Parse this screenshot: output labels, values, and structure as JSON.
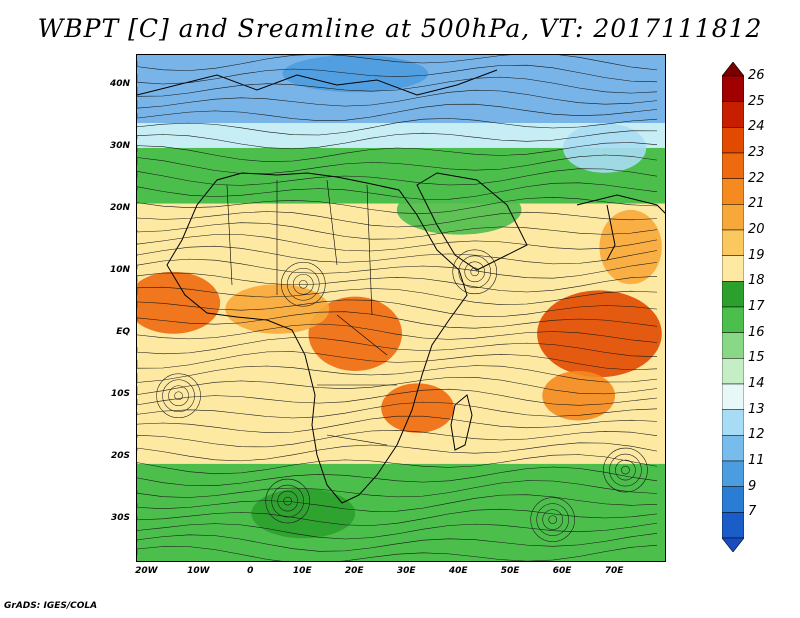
{
  "title": "WBPT [C] and Sreamline at 500hPa, VT: 2017111812",
  "credit": "GrADS: IGES/COLA",
  "lat_labels": [
    "40N",
    "30N",
    "20N",
    "10N",
    "EQ",
    "10S",
    "20S",
    "30S"
  ],
  "lat_values": [
    40,
    30,
    20,
    10,
    0,
    -10,
    -20,
    -30
  ],
  "lon_labels": [
    "20W",
    "10W",
    "0",
    "10E",
    "20E",
    "30E",
    "40E",
    "50E",
    "60E",
    "70E"
  ],
  "lon_values": [
    -20,
    -10,
    0,
    10,
    20,
    30,
    40,
    50,
    60,
    70
  ],
  "extent": {
    "lon_min": -22,
    "lon_max": 80,
    "lat_min": -37,
    "lat_max": 45
  },
  "colorbar": {
    "labels": [
      "26",
      "25",
      "24",
      "23",
      "22",
      "21",
      "20",
      "19",
      "18",
      "17",
      "16",
      "15",
      "14",
      "13",
      "12",
      "11",
      "9",
      "7"
    ],
    "colors": [
      "#a00000",
      "#c81e00",
      "#e14a00",
      "#ee6a10",
      "#f48a20",
      "#f8a838",
      "#fbc860",
      "#fde9a2",
      "#2ca02c",
      "#4cbe4c",
      "#88d888",
      "#c6eec6",
      "#e8f8f8",
      "#a8dcf4",
      "#78bcec",
      "#4c9ce0",
      "#2a7cd4",
      "#1a5cc8"
    ],
    "top_arrow_color": "#7a0000",
    "bottom_arrow_color": "#1a4cc0"
  },
  "field_regions": [
    {
      "name": "north-blue",
      "color": "#78b4e8",
      "lat_top": 45,
      "lat_bottom": 34
    },
    {
      "name": "north-lightblue",
      "color": "#c6eef4",
      "lat_top": 34,
      "lat_bottom": 30
    },
    {
      "name": "north-green",
      "color": "#4cbe4c",
      "lat_top": 30,
      "lat_bottom": 21
    },
    {
      "name": "tropical-yellow",
      "color": "#fde9a2",
      "lat_top": 21,
      "lat_bottom": -21
    },
    {
      "name": "south-green",
      "color": "#4cbe4c",
      "lat_top": -21,
      "lat_bottom": -37
    }
  ],
  "field_value_blobs": [
    {
      "color": "#ee6a10",
      "lon": -15,
      "lat": 5,
      "rx_deg": 9,
      "ry_deg": 5
    },
    {
      "color": "#ee6a10",
      "lon": 20,
      "lat": 0,
      "rx_deg": 9,
      "ry_deg": 6
    },
    {
      "color": "#ee6a10",
      "lon": 32,
      "lat": -12,
      "rx_deg": 7,
      "ry_deg": 4
    },
    {
      "color": "#e14a00",
      "lon": 67,
      "lat": 0,
      "rx_deg": 12,
      "ry_deg": 7
    },
    {
      "color": "#f48a20",
      "lon": 63,
      "lat": -10,
      "rx_deg": 7,
      "ry_deg": 4
    },
    {
      "color": "#f8a838",
      "lon": 5,
      "lat": 4,
      "rx_deg": 10,
      "ry_deg": 4
    },
    {
      "color": "#f8a838",
      "lon": 73,
      "lat": 14,
      "rx_deg": 6,
      "ry_deg": 6
    },
    {
      "color": "#4cbe4c",
      "lon": 40,
      "lat": 20,
      "rx_deg": 12,
      "ry_deg": 4
    },
    {
      "color": "#4cbe4c",
      "lon": 59,
      "lat": -28,
      "rx_deg": 5,
      "ry_deg": 6
    },
    {
      "color": "#2ca02c",
      "lon": 10,
      "lat": -29,
      "rx_deg": 10,
      "ry_deg": 4
    },
    {
      "color": "#4c9ce0",
      "lon": 20,
      "lat": 42,
      "rx_deg": 14,
      "ry_deg": 3
    },
    {
      "color": "#a8dcf4",
      "lon": 68,
      "lat": 30,
      "rx_deg": 8,
      "ry_deg": 4
    }
  ]
}
